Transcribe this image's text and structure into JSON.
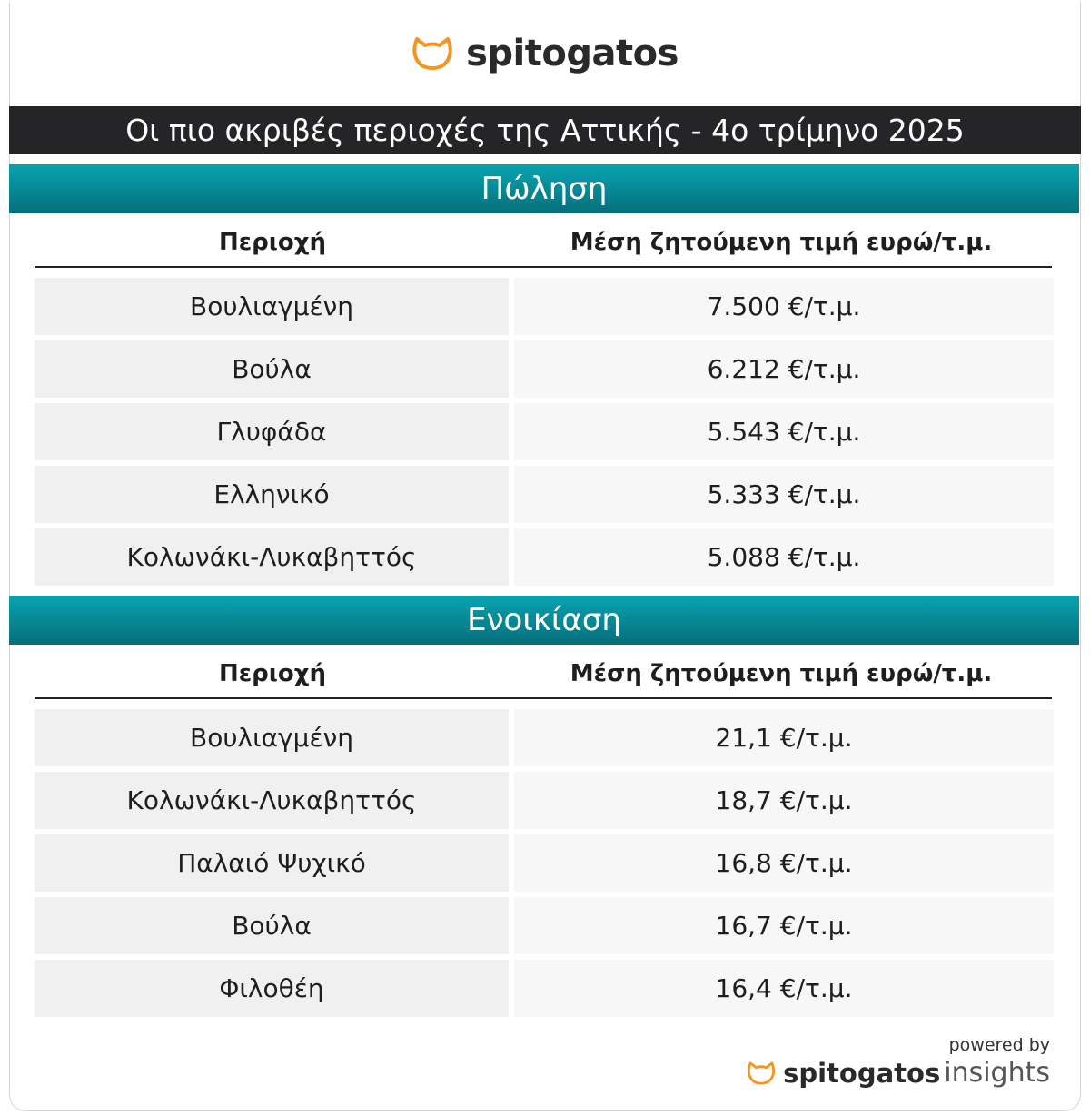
{
  "brand": {
    "name": "spitogatos",
    "accent": "#f7941d"
  },
  "title": "Οι πιο ακριβές περιοχές της Αττικής - 4ο τρίμηνο 2025",
  "sections": [
    {
      "name": "Πώληση",
      "headers": [
        "Περιοχή",
        "Μέση ζητούμενη τιμή ευρώ/τ.μ."
      ],
      "rows": [
        [
          "Βουλιαγμένη",
          "7.500 €/τ.μ."
        ],
        [
          "Βούλα",
          "6.212 €/τ.μ."
        ],
        [
          "Γλυφάδα",
          "5.543 €/τ.μ."
        ],
        [
          "Ελληνικό",
          "5.333 €/τ.μ."
        ],
        [
          "Κολωνάκι-Λυκαβηττός",
          "5.088 €/τ.μ."
        ]
      ]
    },
    {
      "name": "Ενοικίαση",
      "headers": [
        "Περιοχή",
        "Μέση ζητούμενη τιμή ευρώ/τ.μ."
      ],
      "rows": [
        [
          "Βουλιαγμένη",
          "21,1 €/τ.μ."
        ],
        [
          "Κολωνάκι-Λυκαβηττός",
          "18,7 €/τ.μ."
        ],
        [
          "Παλαιό Ψυχικό",
          "16,8 €/τ.μ."
        ],
        [
          "Βούλα",
          "16,7 €/τ.μ."
        ],
        [
          "Φιλοθέη",
          "16,4 €/τ.μ."
        ]
      ]
    }
  ],
  "footer": {
    "powered_by": "powered by",
    "brand": "spitogatos",
    "product": "insights"
  },
  "colors": {
    "title_bg": "#252527",
    "section_bg": "#08a3b0"
  }
}
